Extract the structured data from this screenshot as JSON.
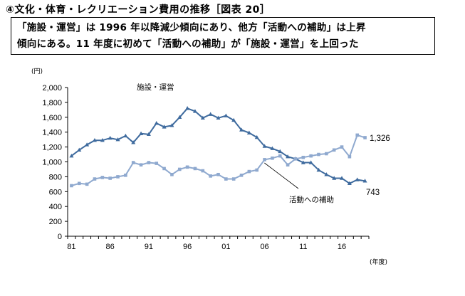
{
  "heading": "④文化・体育・レクリエーション費用の推移［図表 20］",
  "summary": {
    "line1": "「施設・運営」は 1996 年以降減少傾向にあり、他方「活動への補助」は上昇",
    "line2": "傾向にある。11 年度に初めて「活動への補助」が「施設・運営」を上回った"
  },
  "chart_data": {
    "type": "line",
    "y_unit_label": "(円)",
    "x_unit_label": "(年度)",
    "ylim": [
      0,
      2000
    ],
    "y_ticks": [
      "0",
      "200",
      "400",
      "600",
      "800",
      "1,000",
      "1,200",
      "1,400",
      "1,600",
      "1,800",
      "2,000"
    ],
    "x_tick_labels": [
      "81",
      "86",
      "91",
      "96",
      "01",
      "06",
      "11",
      "16"
    ],
    "x": [
      "81",
      "82",
      "83",
      "84",
      "85",
      "86",
      "87",
      "88",
      "89",
      "90",
      "91",
      "92",
      "93",
      "94",
      "95",
      "96",
      "97",
      "98",
      "99",
      "00",
      "01",
      "02",
      "03",
      "04",
      "05",
      "06",
      "07",
      "08",
      "09",
      "10",
      "11",
      "12",
      "13",
      "14",
      "15",
      "16",
      "17",
      "18",
      "19"
    ],
    "series": [
      {
        "name": "施設・運営",
        "color": "#3f6b9e",
        "marker": "triangle",
        "values": [
          1080,
          1160,
          1230,
          1290,
          1290,
          1320,
          1300,
          1350,
          1260,
          1380,
          1370,
          1520,
          1470,
          1490,
          1600,
          1720,
          1680,
          1590,
          1640,
          1590,
          1620,
          1560,
          1430,
          1390,
          1330,
          1210,
          1180,
          1140,
          1070,
          1040,
          990,
          990,
          890,
          830,
          780,
          780,
          710,
          760,
          743
        ],
        "end_label": "743"
      },
      {
        "name": "活動への補助",
        "color": "#8fa9cf",
        "marker": "square",
        "values": [
          680,
          710,
          700,
          770,
          790,
          780,
          800,
          820,
          990,
          960,
          990,
          980,
          910,
          830,
          900,
          930,
          910,
          880,
          810,
          830,
          770,
          770,
          820,
          870,
          890,
          1030,
          1050,
          1080,
          960,
          1040,
          1060,
          1080,
          1100,
          1110,
          1160,
          1200,
          1070,
          1360,
          1326
        ],
        "end_label": "1,326"
      }
    ]
  }
}
